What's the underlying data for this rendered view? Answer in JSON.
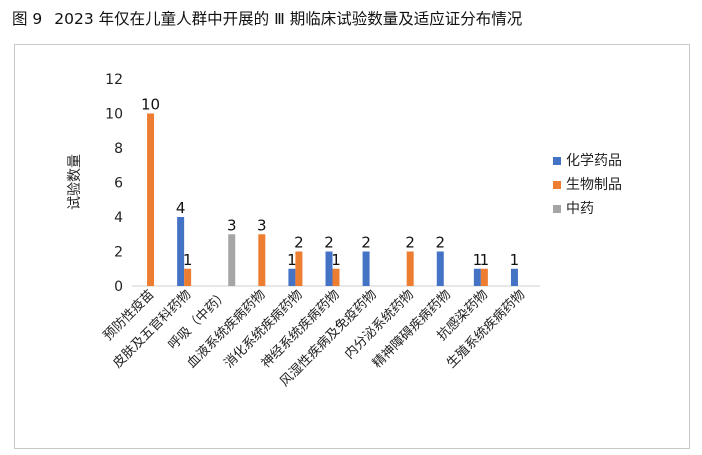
{
  "figure": {
    "number": "图 9",
    "title": "2023 年仅在儿童人群中开展的 Ⅲ 期临床试验数量及适应证分布情况"
  },
  "chart_data": {
    "type": "bar",
    "title": "",
    "xlabel": "",
    "ylabel": "试验数量",
    "ylim": [
      0,
      12
    ],
    "yticks": [
      0,
      2,
      4,
      6,
      8,
      10,
      12
    ],
    "grid": false,
    "legend_position": "right",
    "categories": [
      "预防性疫苗",
      "皮肤及五官科药物",
      "呼吸（中药）",
      "血液系统疾病药物",
      "消化系统疾病药物",
      "神经系统疾病药物",
      "风湿性疾病及免疫药物",
      "内分泌系统药物",
      "精神障碍疾病药物",
      "抗感染药物",
      "生殖系统疾病药物"
    ],
    "series": [
      {
        "name": "化学药品",
        "color": "#4472C4",
        "values": [
          null,
          4,
          null,
          null,
          1,
          2,
          2,
          null,
          2,
          1,
          1
        ]
      },
      {
        "name": "生物制品",
        "color": "#ED7D31",
        "values": [
          10,
          1,
          null,
          3,
          2,
          1,
          null,
          2,
          null,
          1,
          null
        ]
      },
      {
        "name": "中药",
        "color": "#A5A5A5",
        "values": [
          null,
          null,
          3,
          null,
          null,
          null,
          null,
          null,
          null,
          null,
          null
        ]
      }
    ]
  }
}
